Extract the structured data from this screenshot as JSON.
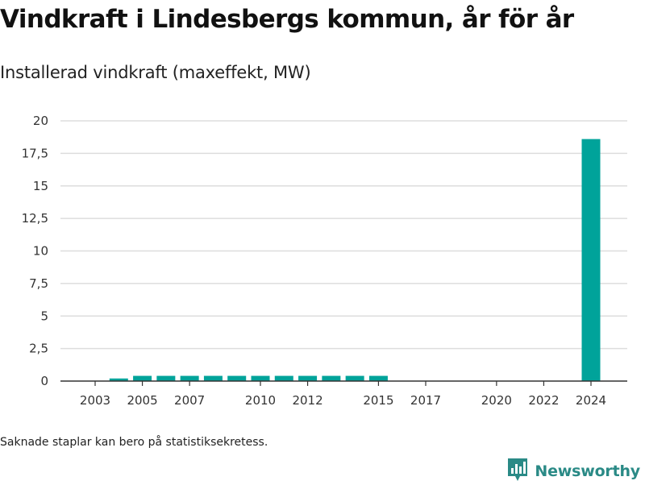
{
  "title": "Vindkraft i Lindesbergs kommun, år för år",
  "subtitle": "Installerad vindkraft (maxeffekt, MW)",
  "note": "Saknade staplar kan bero på statistiksekretess.",
  "brand": {
    "name": "Newsworthy",
    "icon": "bar-chart-logo-icon"
  },
  "colors": {
    "bar": "#00a39a",
    "grid": "#dddddd",
    "axis": "#333333",
    "brand": "#2a8a86"
  },
  "chart_data": {
    "type": "bar",
    "x": [
      2003,
      2004,
      2005,
      2006,
      2007,
      2008,
      2009,
      2010,
      2011,
      2012,
      2013,
      2014,
      2015,
      2016,
      2017,
      2018,
      2019,
      2020,
      2021,
      2022,
      2023,
      2024
    ],
    "values": [
      null,
      0.2,
      0.4,
      0.4,
      0.4,
      0.4,
      0.4,
      0.4,
      0.4,
      0.4,
      0.4,
      0.4,
      0.4,
      null,
      null,
      null,
      null,
      null,
      null,
      null,
      null,
      18.6
    ],
    "xticks": [
      2003,
      2005,
      2007,
      2010,
      2012,
      2015,
      2017,
      2020,
      2022,
      2024
    ],
    "yticks": [
      0,
      2.5,
      5,
      7.5,
      10,
      12.5,
      15,
      17.5,
      20
    ],
    "ytick_labels": [
      "0",
      "2,5",
      "5",
      "7,5",
      "10",
      "12,5",
      "15",
      "17,5",
      "20"
    ],
    "ylim": [
      0,
      20
    ],
    "grid": true
  }
}
